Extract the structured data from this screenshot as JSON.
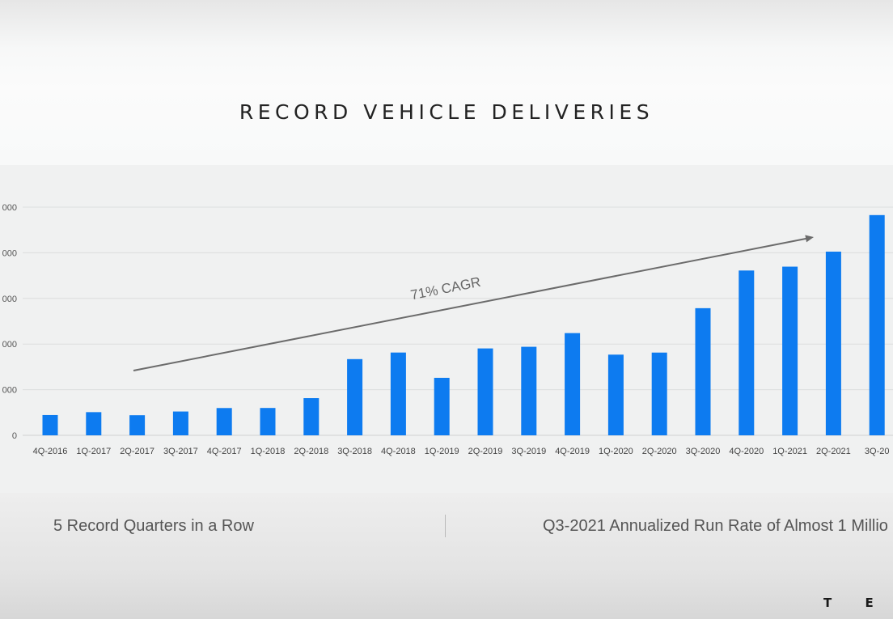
{
  "slide": {
    "title": "RECORD VEHICLE DELIVERIES",
    "footer_left": "5 Record Quarters in a Row",
    "footer_right": "Q3-2021 Annualized Run Rate of Almost 1 Millio",
    "brand": "T E S"
  },
  "colors": {
    "bar": "#0d7bf0",
    "trend_arrow": "#6b6b6b",
    "grid": "#dcdede"
  },
  "chart_data": {
    "type": "bar",
    "title": "",
    "xlabel": "",
    "ylabel": "",
    "categories": [
      "4Q-2016",
      "1Q-2017",
      "2Q-2017",
      "3Q-2017",
      "4Q-2017",
      "1Q-2018",
      "2Q-2018",
      "3Q-2018",
      "4Q-2018",
      "1Q-2019",
      "2Q-2019",
      "3Q-2019",
      "4Q-2019",
      "1Q-2020",
      "2Q-2020",
      "3Q-2020",
      "4Q-2020",
      "1Q-2021",
      "2Q-2021",
      "3Q-20"
    ],
    "values": [
      22200,
      25400,
      22000,
      26100,
      29900,
      29980,
      40740,
      83500,
      90700,
      63000,
      95200,
      97000,
      112000,
      88400,
      90650,
      139300,
      180570,
      184800,
      201250,
      241300
    ],
    "y_tick_labels": [
      "0",
      "000",
      "000",
      "000",
      "000",
      "000"
    ],
    "ylim": [
      0,
      250000
    ],
    "y_ticks": [
      0,
      50000,
      100000,
      150000,
      200000,
      250000
    ],
    "grid": true,
    "annotation": "71% CAGR"
  }
}
